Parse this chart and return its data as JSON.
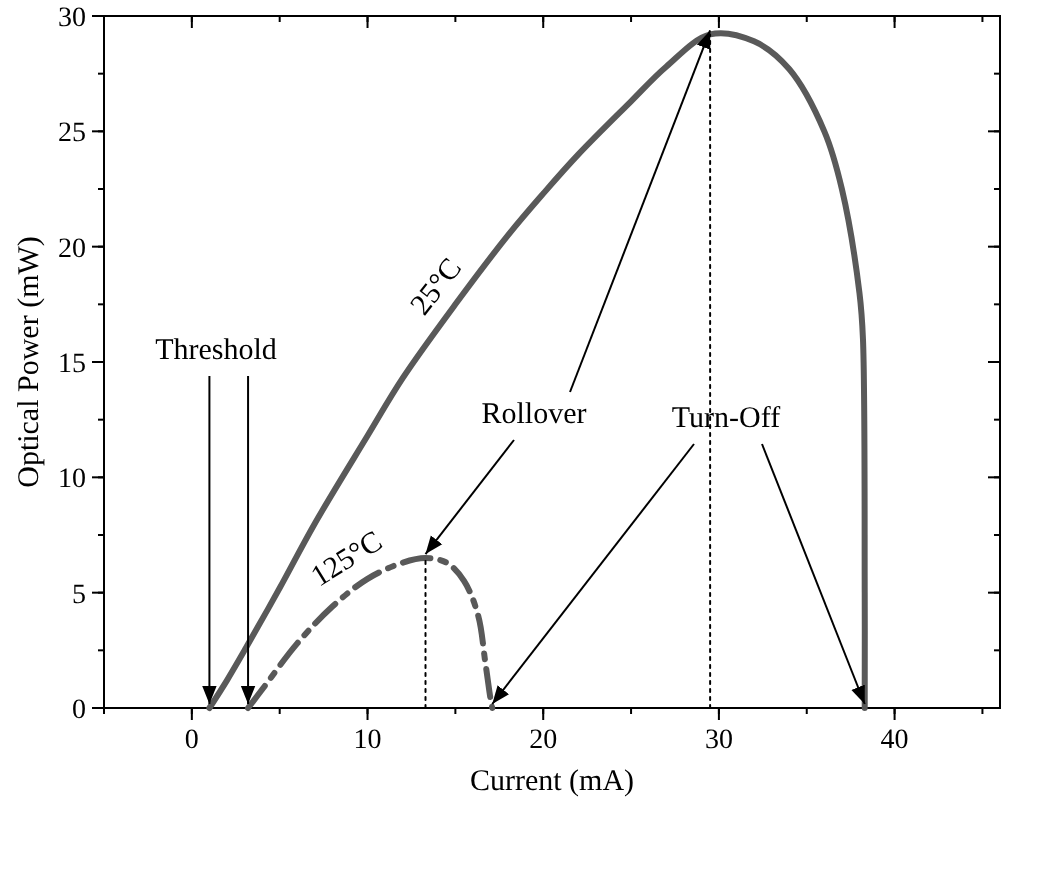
{
  "chart_data": {
    "type": "line",
    "xlabel": "Current (mA)",
    "ylabel": "Optical Power (mW)",
    "xlim": [
      -5,
      46
    ],
    "ylim": [
      0,
      30
    ],
    "xticks": [
      0,
      10,
      20,
      30,
      40
    ],
    "yticks": [
      0,
      5,
      10,
      15,
      20,
      25,
      30
    ],
    "grid": false,
    "marker": "none",
    "series": [
      {
        "name": "25°C",
        "color": "#595959",
        "line_style": "solid",
        "x": [
          1,
          2,
          3,
          5,
          7,
          10,
          12,
          15,
          18,
          20,
          22,
          25,
          27,
          29.5,
          32,
          34,
          36,
          37,
          38,
          38.2,
          38.3,
          38.3
        ],
        "values": [
          0,
          1.2,
          2.5,
          5.2,
          8,
          11.8,
          14.3,
          17.5,
          20.5,
          22.3,
          24,
          26.3,
          27.8,
          29.2,
          28.9,
          27.7,
          25,
          22.5,
          18,
          16,
          5,
          0
        ]
      },
      {
        "name": "125°C",
        "color": "#595959",
        "line_style": "dashed",
        "x": [
          3.2,
          4,
          6,
          8,
          10,
          12,
          13.3,
          14.5,
          15.5,
          16.3,
          16.7,
          17,
          17.1
        ],
        "values": [
          0,
          0.8,
          2.8,
          4.4,
          5.6,
          6.3,
          6.5,
          6.3,
          5.5,
          4,
          2,
          0.4,
          0
        ]
      },
      {
        "color": "#000000",
        "line_style": "dotted",
        "x": [
          13.3,
          13.3
        ],
        "values": [
          0,
          6.5
        ]
      },
      {
        "color": "#000000",
        "line_style": "dotted",
        "x": [
          29.5,
          29.5
        ],
        "values": [
          0,
          29.2
        ]
      }
    ],
    "annotations": [
      {
        "text": "Threshold",
        "x": 1,
        "y": 0
      },
      {
        "text": "Rollover",
        "x": 29.5,
        "y": 29.2
      },
      {
        "text": "Turn-Off",
        "x": 38.3,
        "y": 0
      }
    ]
  }
}
